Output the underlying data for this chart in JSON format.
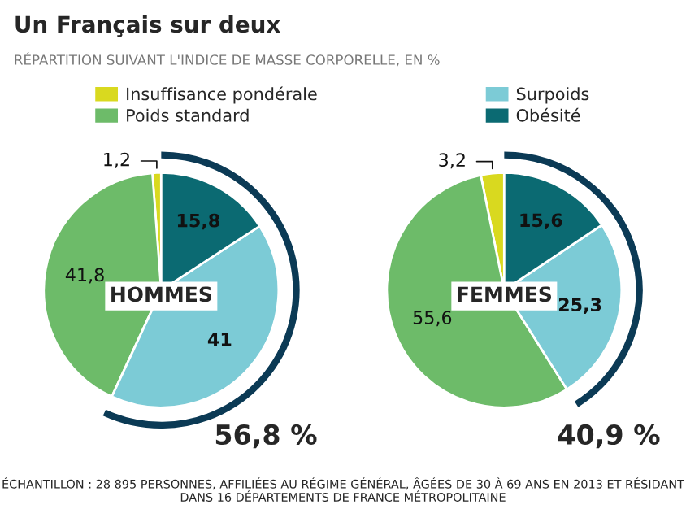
{
  "chart_data": [
    {
      "type": "pie",
      "title": "HOMMES",
      "categories": [
        "Insuffisance pondérale",
        "Poids standard",
        "Surpoids",
        "Obésité"
      ],
      "values": [
        1.2,
        41.8,
        41,
        15.8
      ],
      "value_labels": [
        "1,2",
        "41,8",
        "41",
        "15,8"
      ],
      "colors": [
        "#d9d91f",
        "#6dbb69",
        "#7ccbd6",
        "#0b6a72"
      ],
      "legend": "top",
      "annotations": [
        "Un Français sur deux",
        "RÉPARTITION SUIVANT L'INDICE DE MASSE CORPORELLE, EN %",
        "56,8 %",
        "ÉCHANTILLON : 28 895 PERSONNES, AFFILIÉES AU RÉGIME GÉNÉRAL, ÂGÉES DE 30 À 69 ANS EN 2013 ET RÉSIDANT DANS 16 DÉPARTEMENTS DE FRANCE MÉTROPOLITAINE"
      ]
    },
    {
      "type": "pie",
      "title": "FEMMES",
      "categories": [
        null,
        null,
        null,
        null
      ],
      "values": [
        3.2,
        55.6,
        25.3,
        15.6
      ],
      "value_labels": [
        "3,2",
        "55,6",
        "25,3",
        "15,6"
      ],
      "colors": [
        "#d9d91f",
        "#6dbb69",
        "#7ccbd6",
        "#0b6a72"
      ],
      "annotations": [
        "40,9 %"
      ]
    }
  ]
}
